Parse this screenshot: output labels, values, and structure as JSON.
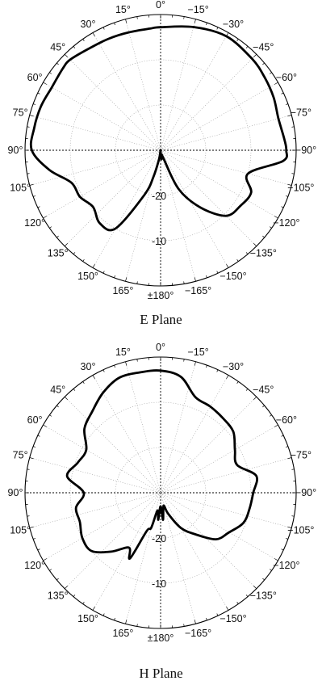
{
  "chart_data": [
    {
      "type": "line",
      "coordinate_system": "polar",
      "title": "E Plane",
      "angle_tick_labels": [
        "0°",
        "−15°",
        "−30°",
        "−45°",
        "−60°",
        "−75°",
        "−90°",
        "−105°",
        "−120°",
        "−135°",
        "−150°",
        "−165°",
        "±180°",
        "165°",
        "150°",
        "135°",
        "120°",
        "105°",
        "90°",
        "75°",
        "60°",
        "45°",
        "30°",
        "15°"
      ],
      "angle_tick_values_deg": [
        0,
        -15,
        -30,
        -45,
        -60,
        -75,
        -90,
        -105,
        -120,
        -135,
        -150,
        -165,
        180,
        165,
        150,
        135,
        120,
        105,
        90,
        75,
        60,
        45,
        30,
        15
      ],
      "radial_tick_labels": [
        "-10",
        "-20"
      ],
      "radial_tick_values": [
        -10,
        -20
      ],
      "radial_range": [
        -30,
        0
      ],
      "grid": true,
      "series": [
        {
          "angle_deg": [
            0,
            -15,
            -30,
            -45,
            -55,
            -65,
            -75,
            -85,
            -90,
            -95,
            -105,
            -115,
            -125,
            -135,
            -145,
            -155,
            -160,
            -165,
            -170,
            -175,
            180,
            175,
            170,
            165,
            160,
            150,
            140,
            130,
            120,
            110,
            100,
            90,
            80,
            70,
            60,
            50,
            45,
            35,
            25,
            15,
            5
          ],
          "values": [
            -2.8,
            -1.8,
            -0.9,
            -1.4,
            -1.9,
            -2.4,
            -3.0,
            -2.5,
            -2.2,
            -2.8,
            -10.0,
            -7.9,
            -8.5,
            -9.5,
            -14.5,
            -20.5,
            -28.0,
            -29.0,
            -28.5,
            -28.0,
            -29.0,
            -30.0,
            -28.0,
            -24.0,
            -19.5,
            -10.0,
            -9.0,
            -10.5,
            -9.4,
            -9.0,
            -5.0,
            -1.5,
            -1.6,
            -1.8,
            -2.2,
            -1.8,
            -1.7,
            -2.5,
            -2.8,
            -3.0,
            -3.0
          ]
        }
      ]
    },
    {
      "type": "line",
      "coordinate_system": "polar",
      "title": "H Plane",
      "angle_tick_labels": [
        "0°",
        "−15°",
        "−30°",
        "−45°",
        "−60°",
        "−75°",
        "−90°",
        "−105°",
        "−120°",
        "−135°",
        "−150°",
        "−165°",
        "±180°",
        "165°",
        "150°",
        "135°",
        "120°",
        "105°",
        "90°",
        "75°",
        "60°",
        "45°",
        "30°",
        "15°"
      ],
      "angle_tick_values_deg": [
        0,
        -15,
        -30,
        -45,
        -60,
        -75,
        -90,
        -105,
        -120,
        -135,
        -150,
        -165,
        180,
        165,
        150,
        135,
        120,
        105,
        90,
        75,
        60,
        45,
        30,
        15
      ],
      "radial_tick_labels": [
        "-10",
        "-20"
      ],
      "radial_tick_values": [
        -10,
        -20
      ],
      "radial_range": [
        -30,
        0
      ],
      "grid": true,
      "series": [
        {
          "angle_deg": [
            0,
            -10,
            -20,
            -30,
            -40,
            -50,
            -60,
            -70,
            -80,
            -90,
            -100,
            -110,
            -120,
            -130,
            -140,
            -150,
            -160,
            -165,
            -170,
            -175,
            180,
            175,
            170,
            165,
            160,
            155,
            150,
            140,
            130,
            120,
            110,
            100,
            90,
            80,
            70,
            60,
            50,
            40,
            30,
            20,
            10
          ],
          "values": [
            -3.0,
            -4.0,
            -7.5,
            -8.0,
            -8.5,
            -9.0,
            -11.0,
            -12.0,
            -8.5,
            -9.5,
            -10.0,
            -10.5,
            -12.5,
            -14.0,
            -18.0,
            -21.0,
            -25.0,
            -27.0,
            -26.5,
            -24.0,
            -27.0,
            -24.0,
            -26.0,
            -22.0,
            -21.0,
            -14.0,
            -16.0,
            -13.0,
            -10.0,
            -10.0,
            -11.0,
            -11.0,
            -13.0,
            -9.0,
            -10.5,
            -11.0,
            -8.0,
            -6.5,
            -4.5,
            -3.0,
            -3.0
          ]
        }
      ]
    }
  ]
}
